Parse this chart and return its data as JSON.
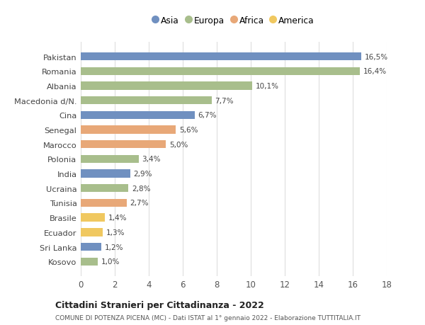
{
  "countries": [
    "Pakistan",
    "Romania",
    "Albania",
    "Macedonia d/N.",
    "Cina",
    "Senegal",
    "Marocco",
    "Polonia",
    "India",
    "Ucraina",
    "Tunisia",
    "Brasile",
    "Ecuador",
    "Sri Lanka",
    "Kosovo"
  ],
  "values": [
    16.5,
    16.4,
    10.1,
    7.7,
    6.7,
    5.6,
    5.0,
    3.4,
    2.9,
    2.8,
    2.7,
    1.4,
    1.3,
    1.2,
    1.0
  ],
  "labels": [
    "16,5%",
    "16,4%",
    "10,1%",
    "7,7%",
    "6,7%",
    "5,6%",
    "5,0%",
    "3,4%",
    "2,9%",
    "2,8%",
    "2,7%",
    "1,4%",
    "1,3%",
    "1,2%",
    "1,0%"
  ],
  "colors": [
    "#7090c0",
    "#a8be8c",
    "#a8be8c",
    "#a8be8c",
    "#7090c0",
    "#e8a878",
    "#e8a878",
    "#a8be8c",
    "#7090c0",
    "#a8be8c",
    "#e8a878",
    "#f0c860",
    "#f0c860",
    "#7090c0",
    "#a8be8c"
  ],
  "continents": [
    "Asia",
    "Europa",
    "Africa",
    "America"
  ],
  "legend_colors": [
    "#7090c0",
    "#a8be8c",
    "#e8a878",
    "#f0c860"
  ],
  "title": "Cittadini Stranieri per Cittadinanza - 2022",
  "subtitle": "COMUNE DI POTENZA PICENA (MC) - Dati ISTAT al 1° gennaio 2022 - Elaborazione TUTTITALIA.IT",
  "xlim": [
    0,
    18
  ],
  "xticks": [
    0,
    2,
    4,
    6,
    8,
    10,
    12,
    14,
    16,
    18
  ],
  "background_color": "#ffffff",
  "grid_color": "#dddddd",
  "bar_height": 0.55
}
